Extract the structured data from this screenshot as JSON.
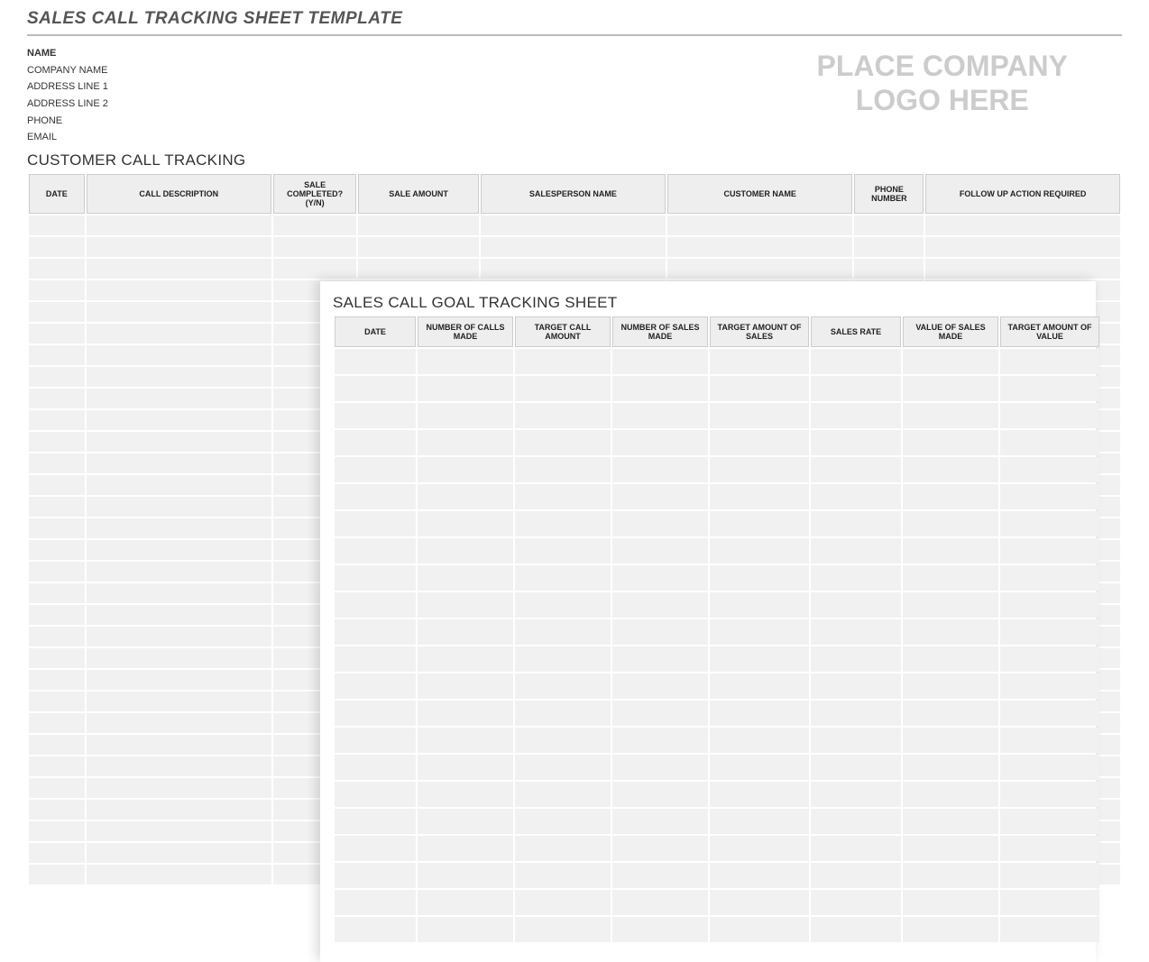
{
  "page_title": "SALES CALL TRACKING SHEET TEMPLATE",
  "company": {
    "name_label": "NAME",
    "company_name": "COMPANY NAME",
    "address1": "ADDRESS LINE 1",
    "address2": "ADDRESS LINE 2",
    "phone": "PHONE",
    "email": "EMAIL"
  },
  "logo_placeholder": "PLACE COMPANY\nLOGO HERE",
  "background_sheet": {
    "section_title": "CUSTOMER CALL TRACKING",
    "columns": [
      "DATE",
      "CALL DESCRIPTION",
      "SALE COMPLETED? (Y/N)",
      "SALE AMOUNT",
      "SALESPERSON NAME",
      "CUSTOMER NAME",
      "PHONE NUMBER",
      "FOLLOW UP ACTION REQUIRED"
    ],
    "row_count": 31,
    "header_bg": "#eeeeee",
    "header_border": "#cccccc",
    "cell_bg": "#f1f1f1",
    "header_fontsize": 9
  },
  "foreground_sheet": {
    "section_title": "SALES CALL GOAL TRACKING SHEET",
    "columns": [
      "DATE",
      "NUMBER OF CALLS MADE",
      "TARGET CALL AMOUNT",
      "NUMBER OF SALES MADE",
      "TARGET AMOUNT OF SALES",
      "SALES RATE",
      "VALUE OF SALES MADE",
      "TARGET AMOUNT OF VALUE"
    ],
    "row_count": 22,
    "header_bg": "#eeeeee",
    "header_border": "#cccccc",
    "cell_bg": "#f1f1f1",
    "header_fontsize": 9
  },
  "colors": {
    "title_color": "#555555",
    "title_underline": "#bbbbbb",
    "logo_color": "#cccccc",
    "text_color": "#333333",
    "background": "#ffffff"
  }
}
